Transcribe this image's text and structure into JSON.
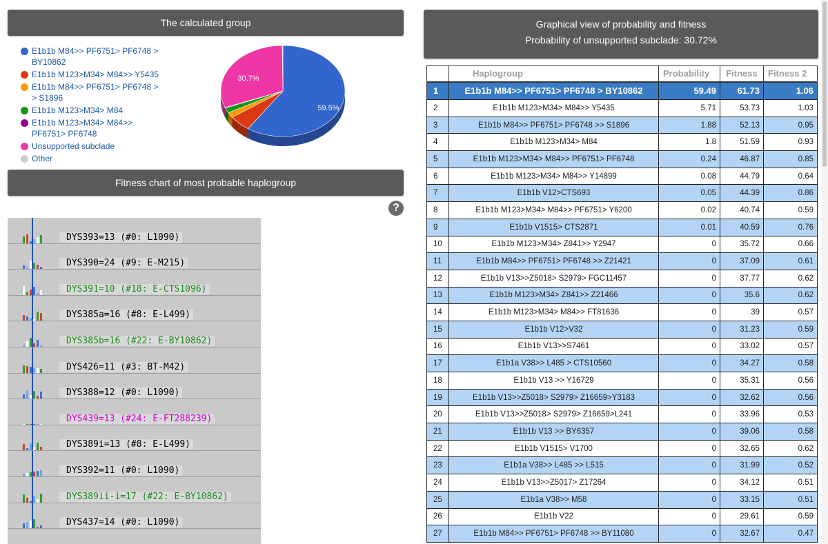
{
  "group_panel": {
    "title": "The calculated group"
  },
  "legend": [
    {
      "label": "E1b1b M84>> PF6751> PF6748 > BY10862",
      "color": "#3366cc"
    },
    {
      "label": "E1b1b M123>M34> M84>> Y5435",
      "color": "#dc3912"
    },
    {
      "label": "E1b1b M84>> PF6751> PF6748 > > S1896",
      "color": "#ff9900"
    },
    {
      "label": "E1b1b M123>M34> M84",
      "color": "#109618"
    },
    {
      "label": "E1b1b M123>M34> M84>> PF6751> PF6748",
      "color": "#990099"
    },
    {
      "label": "Unsupported subclade",
      "color": "#ee37a5"
    },
    {
      "label": "Other",
      "color": "#cccccc"
    }
  ],
  "chart_data": {
    "type": "pie",
    "slices": [
      {
        "name": "E1b1b M84>> PF6751> PF6748 > BY10862",
        "value": 59.49,
        "color": "#3366cc"
      },
      {
        "name": "E1b1b M123>M34> M84>> Y5435",
        "value": 5.71,
        "color": "#dc3912"
      },
      {
        "name": "E1b1b M84>> PF6751> PF6748 > > S1896",
        "value": 1.88,
        "color": "#ff9900"
      },
      {
        "name": "E1b1b M123>M34> M84",
        "value": 1.8,
        "color": "#109618"
      },
      {
        "name": "E1b1b M123>M34> M84>> PF6751> PF6748",
        "value": 0.24,
        "color": "#990099"
      },
      {
        "name": "Unsupported subclade",
        "value": 30.72,
        "color": "#ee37a5"
      },
      {
        "name": "Other",
        "value": 0.16,
        "color": "#cccccc"
      }
    ],
    "data_labels": {
      "main": "59.5%",
      "unsupported": "30.7%"
    }
  },
  "fitness_panel": {
    "title": "Fitness chart of most probable haplogroup"
  },
  "markers": [
    {
      "label": "DYS393=13 (#0: L1090)",
      "color": "#000000"
    },
    {
      "label": "DYS390=24 (#9: E-M215)",
      "color": "#000000"
    },
    {
      "label": "DYS391=10 (#18: E-CTS1096)",
      "color": "#1a8a1a"
    },
    {
      "label": "DYS385a=16 (#8: E-L499)",
      "color": "#000000"
    },
    {
      "label": "DYS385b=16 (#22: E-BY10862)",
      "color": "#1a8a1a"
    },
    {
      "label": "DYS426=11 (#3: BT-M42)",
      "color": "#000000"
    },
    {
      "label": "DYS388=12 (#0: L1090)",
      "color": "#000000"
    },
    {
      "label": "DYS439=13 (#24: E-FT288239)",
      "color": "#cc00cc"
    },
    {
      "label": "DYS389i=13 (#8: E-L499)",
      "color": "#000000"
    },
    {
      "label": "DYS392=11 (#0: L1090)",
      "color": "#000000"
    },
    {
      "label": "DYS389ii-i=17 (#22: E-BY10862)",
      "color": "#1a8a1a"
    },
    {
      "label": "DYS437=14 (#0: L1090)",
      "color": "#000000"
    }
  ],
  "graph_panel": {
    "title": "Graphical view of probability and fitness",
    "subtitle": "Probability of unsupported subclade: 30.72%"
  },
  "table": {
    "headers": {
      "num": "",
      "haplogroup": "Haplogroup",
      "probability": "Probability",
      "fitness": "Fitness",
      "fitness2": "Fitness 2"
    },
    "rows": [
      {
        "n": "1",
        "h": "E1b1b M84>> PF6751> PF6748 > BY10862",
        "p": "59.49",
        "f": "61.73",
        "f2": "1.06"
      },
      {
        "n": "2",
        "h": "E1b1b M123>M34> M84>> Y5435",
        "p": "5.71",
        "f": "53.73",
        "f2": "1.03"
      },
      {
        "n": "3",
        "h": "E1b1b M84>> PF6751> PF6748 >> S1896",
        "p": "1.88",
        "f": "52.13",
        "f2": "0.95"
      },
      {
        "n": "4",
        "h": "E1b1b M123>M34> M84",
        "p": "1.8",
        "f": "51.59",
        "f2": "0.93"
      },
      {
        "n": "5",
        "h": "E1b1b M123>M34> M84>> PF6751> PF6748",
        "p": "0.24",
        "f": "46.87",
        "f2": "0.85"
      },
      {
        "n": "6",
        "h": "E1b1b M123>M34> M84>> Y14899",
        "p": "0.08",
        "f": "44.79",
        "f2": "0.64"
      },
      {
        "n": "7",
        "h": "E1b1b V12>CTS693",
        "p": "0.05",
        "f": "44.39",
        "f2": "0.86"
      },
      {
        "n": "8",
        "h": "E1b1b M123>M34> M84>> PF6751> Y6200",
        "p": "0.02",
        "f": "40.74",
        "f2": "0.59"
      },
      {
        "n": "9",
        "h": "E1b1b V1515> CTS2871",
        "p": "0.01",
        "f": "40.59",
        "f2": "0.76"
      },
      {
        "n": "10",
        "h": "E1b1b M123>M34> Z841>> Y2947",
        "p": "0",
        "f": "35.72",
        "f2": "0.66"
      },
      {
        "n": "11",
        "h": "E1b1b M84>> PF6751> PF6748 >> Z21421",
        "p": "0",
        "f": "37.09",
        "f2": "0.61"
      },
      {
        "n": "12",
        "h": "E1b1b V13>>Z5018> S2979> FGC11457",
        "p": "0",
        "f": "37.77",
        "f2": "0.62"
      },
      {
        "n": "13",
        "h": "E1b1b M123>M34> Z841>> Z21466",
        "p": "0",
        "f": "35.6",
        "f2": "0.62"
      },
      {
        "n": "14",
        "h": "E1b1b M123>M34> M84>> FT81636",
        "p": "0",
        "f": "39",
        "f2": "0.57"
      },
      {
        "n": "15",
        "h": "E1b1b V12>V32",
        "p": "0",
        "f": "31.23",
        "f2": "0.59"
      },
      {
        "n": "16",
        "h": "E1b1b V13>>S7461",
        "p": "0",
        "f": "33.02",
        "f2": "0.57"
      },
      {
        "n": "17",
        "h": "E1b1a V38>> L485 > CTS10560",
        "p": "0",
        "f": "34.27",
        "f2": "0.58"
      },
      {
        "n": "18",
        "h": "E1b1b V13 >> Y16729",
        "p": "0",
        "f": "35.31",
        "f2": "0.56"
      },
      {
        "n": "19",
        "h": "E1b1b V13>>Z5018> S2979> Z16659>Y3183",
        "p": "0",
        "f": "32.62",
        "f2": "0.56"
      },
      {
        "n": "20",
        "h": "E1b1b V13>>Z5018> S2979> Z16659>L241",
        "p": "0",
        "f": "33.96",
        "f2": "0.53"
      },
      {
        "n": "21",
        "h": "E1b1b V13 >> BY6357",
        "p": "0",
        "f": "39.06",
        "f2": "0.58"
      },
      {
        "n": "22",
        "h": "E1b1b V1515> V1700",
        "p": "0",
        "f": "32.65",
        "f2": "0.62"
      },
      {
        "n": "23",
        "h": "E1b1a V38>> L485 >> L515",
        "p": "0",
        "f": "31.99",
        "f2": "0.52"
      },
      {
        "n": "24",
        "h": "E1b1b V13>>Z5017> Z17264",
        "p": "0",
        "f": "34.12",
        "f2": "0.51"
      },
      {
        "n": "25",
        "h": "E1b1a V38>> M58",
        "p": "0",
        "f": "33.15",
        "f2": "0.51"
      },
      {
        "n": "26",
        "h": "E1b1b V22",
        "p": "0",
        "f": "29.61",
        "f2": "0.59"
      },
      {
        "n": "27",
        "h": "E1b1b M84>> PF6751> PF6748 >> BY11080",
        "p": "0",
        "f": "32.67",
        "f2": "0.47"
      }
    ]
  }
}
